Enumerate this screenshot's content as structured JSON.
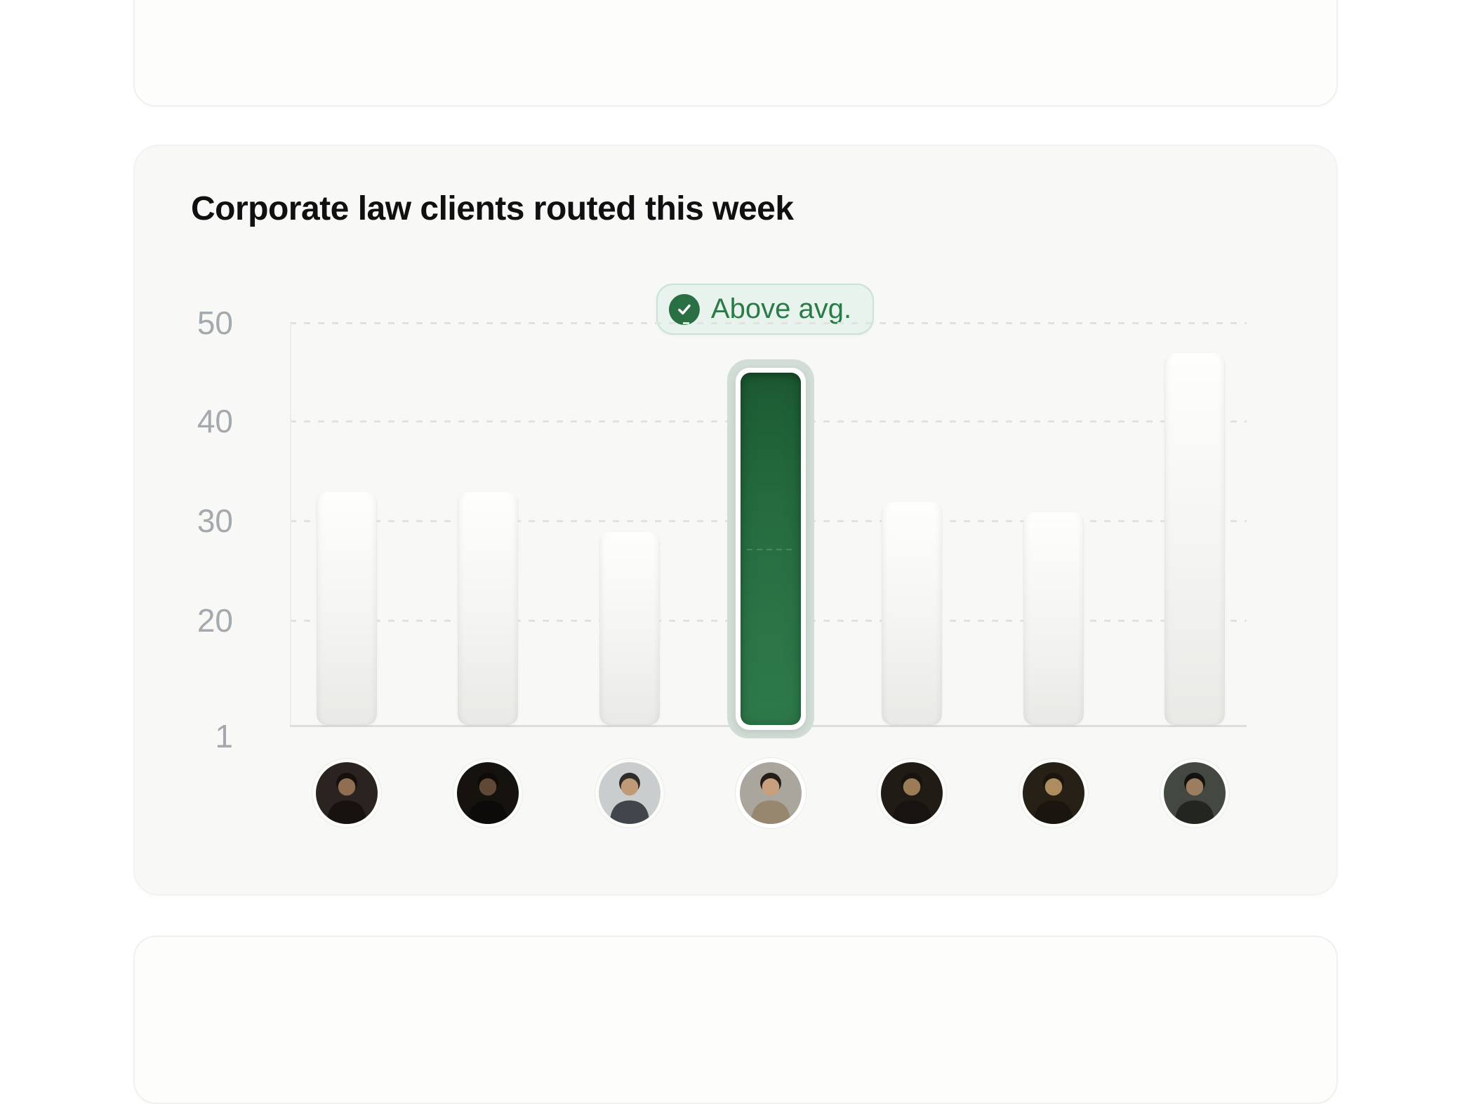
{
  "chart_data": {
    "type": "bar",
    "title": "Corporate law clients routed this week",
    "xlabel": "",
    "ylabel": "",
    "y_ticks": [
      "50",
      "40",
      "30",
      "20",
      "1"
    ],
    "ylim": [
      1,
      52
    ],
    "grid": "horizontal-dashed",
    "legend": "none",
    "categories": [
      "person-1",
      "person-2",
      "person-3",
      "person-4",
      "person-5",
      "person-6",
      "person-7"
    ],
    "values": [
      33,
      33,
      29,
      45,
      32,
      31,
      47
    ],
    "highlight": {
      "index": 3,
      "badge_label": "Above avg.",
      "badge_icon": "check-icon",
      "colors": {
        "bar_top": "#1c5a33",
        "bar_bottom": "#2e7a4a",
        "ring": "#ffffff",
        "glow": "#d2ded5",
        "badge_bg": "#e8f3ed",
        "badge_border": "#c8e3d3",
        "badge_text": "#2d7a49"
      }
    },
    "bar_color": "#f0f0ee",
    "axis_text_color": "#a4a9ad",
    "avatars": [
      {
        "id": "avatar-1",
        "bg": "#2b2320",
        "hair": "#15100c",
        "head": "#8f6e52",
        "torso": "#17120f"
      },
      {
        "id": "avatar-2",
        "bg": "#16130f",
        "hair": "#0e0b09",
        "head": "#5f4836",
        "torso": "#0d0b0a"
      },
      {
        "id": "avatar-3",
        "bg": "#c9cdcd",
        "hair": "#2e2b28",
        "head": "#c09a76",
        "torso": "#41464c"
      },
      {
        "id": "avatar-4",
        "bg": "#aaa59d",
        "hair": "#241d18",
        "head": "#c9a07e",
        "torso": "#97876f"
      },
      {
        "id": "avatar-5",
        "bg": "#211b16",
        "hair": "#191310",
        "head": "#9c7b57",
        "torso": "#171310"
      },
      {
        "id": "avatar-6",
        "bg": "#262017",
        "hair": "#1c150e",
        "head": "#ad8c5f",
        "torso": "#1a150f"
      },
      {
        "id": "avatar-7",
        "bg": "#434841",
        "hair": "#14120f",
        "head": "#9c7d60",
        "torso": "#23261f"
      }
    ]
  }
}
